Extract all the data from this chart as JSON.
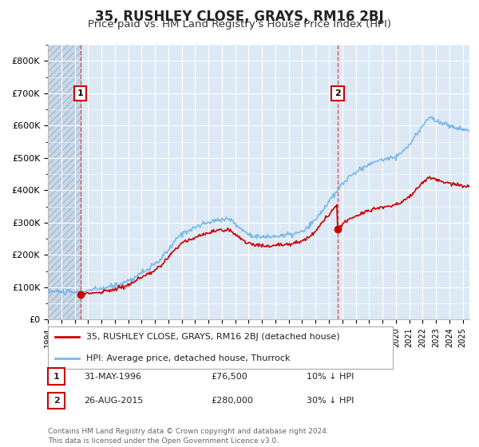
{
  "title": "35, RUSHLEY CLOSE, GRAYS, RM16 2BJ",
  "subtitle": "Price paid vs. HM Land Registry's House Price Index (HPI)",
  "title_fontsize": 12,
  "subtitle_fontsize": 9.5,
  "ylim": [
    0,
    850000
  ],
  "ytick_labels": [
    "£0",
    "£100K",
    "£200K",
    "£300K",
    "£400K",
    "£500K",
    "£600K",
    "£700K",
    "£800K"
  ],
  "ytick_values": [
    0,
    100000,
    200000,
    300000,
    400000,
    500000,
    600000,
    700000,
    800000
  ],
  "background_color": "#ffffff",
  "plot_bg_color": "#dce9f5",
  "hatch_bg_color": "#c8d8e8",
  "grid_color": "#ffffff",
  "hpi_line_color": "#7ab8e8",
  "price_line_color": "#cc0000",
  "dashed_line_color": "#dd4444",
  "sale1_date_x": 1996.42,
  "sale1_price": 76500,
  "sale2_date_x": 2015.65,
  "sale2_price": 280000,
  "legend_label_price": "35, RUSHLEY CLOSE, GRAYS, RM16 2BJ (detached house)",
  "legend_label_hpi": "HPI: Average price, detached house, Thurrock",
  "annotation1_label": "1",
  "annotation2_label": "2",
  "table_rows": [
    [
      "1",
      "31-MAY-1996",
      "£76,500",
      "10% ↓ HPI"
    ],
    [
      "2",
      "26-AUG-2015",
      "£280,000",
      "30% ↓ HPI"
    ]
  ],
  "footer": "Contains HM Land Registry data © Crown copyright and database right 2024.\nThis data is licensed under the Open Government Licence v3.0.",
  "xmin": 1994,
  "xmax": 2025.5
}
